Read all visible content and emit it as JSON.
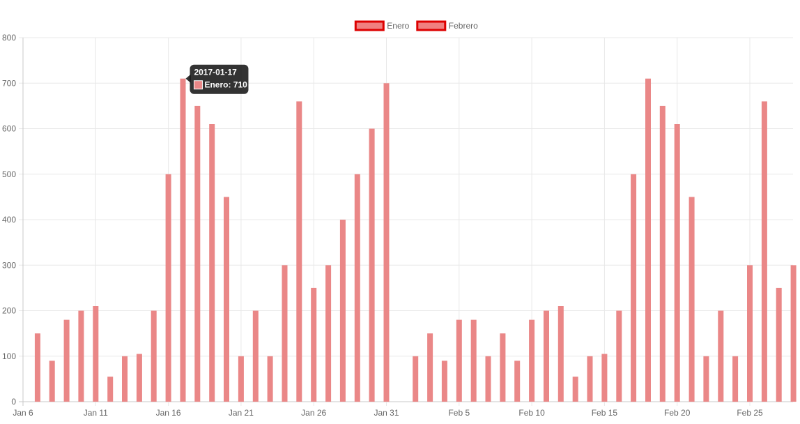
{
  "chart_data": {
    "type": "bar",
    "legend": {
      "position": "top-center",
      "items": [
        {
          "label": "Enero",
          "fill": "#f08080",
          "border": "#dd0000"
        },
        {
          "label": "Febrero",
          "fill": "#f08080",
          "border": "#dd0000"
        }
      ]
    },
    "x_axis": {
      "type": "time",
      "start_label": "Jan 6",
      "tick_labels": [
        "Jan 6",
        "Jan 11",
        "Jan 16",
        "Jan 21",
        "Jan 26",
        "Jan 31",
        "Feb 5",
        "Feb 10",
        "Feb 15",
        "Feb 20",
        "Feb 25"
      ],
      "grid": true
    },
    "y_axis": {
      "min": 0,
      "max": 800,
      "step": 100,
      "tick_labels": [
        "0",
        "100",
        "200",
        "300",
        "400",
        "500",
        "600",
        "700",
        "800"
      ],
      "grid": true
    },
    "series": [
      {
        "name": "Enero",
        "color": "#ea8787",
        "x": [
          "2017-01-07",
          "2017-01-08",
          "2017-01-09",
          "2017-01-10",
          "2017-01-11",
          "2017-01-12",
          "2017-01-13",
          "2017-01-14",
          "2017-01-15",
          "2017-01-16",
          "2017-01-17",
          "2017-01-18",
          "2017-01-19",
          "2017-01-20",
          "2017-01-21",
          "2017-01-22",
          "2017-01-23",
          "2017-01-24",
          "2017-01-25",
          "2017-01-26",
          "2017-01-27",
          "2017-01-28",
          "2017-01-29",
          "2017-01-30",
          "2017-01-31",
          "2017-02-01",
          "2017-02-02",
          "2017-02-03",
          "2017-02-04",
          "2017-02-05",
          "2017-02-06",
          "2017-02-07",
          "2017-02-08",
          "2017-02-09",
          "2017-02-10",
          "2017-02-11",
          "2017-02-12",
          "2017-02-13",
          "2017-02-14",
          "2017-02-15",
          "2017-02-16",
          "2017-02-17",
          "2017-02-18",
          "2017-02-19",
          "2017-02-20",
          "2017-02-21",
          "2017-02-22",
          "2017-02-23",
          "2017-02-24",
          "2017-02-25",
          "2017-02-26",
          "2017-02-27",
          "2017-02-28"
        ],
        "values": [
          150,
          90,
          180,
          200,
          210,
          55,
          100,
          105,
          200,
          500,
          710,
          650,
          610,
          450,
          100,
          200,
          100,
          300,
          660,
          250,
          300,
          400,
          500,
          600,
          700,
          null,
          100,
          150,
          90,
          180,
          180,
          100,
          150,
          90,
          180,
          200,
          210,
          55,
          100,
          105,
          200,
          500,
          710,
          650,
          610,
          450,
          100,
          200,
          100,
          300,
          660,
          250,
          300
        ]
      }
    ],
    "tooltip": {
      "title": "2017-01-17",
      "label": "Enero: 710",
      "swatch_color": "#ea8787"
    }
  }
}
